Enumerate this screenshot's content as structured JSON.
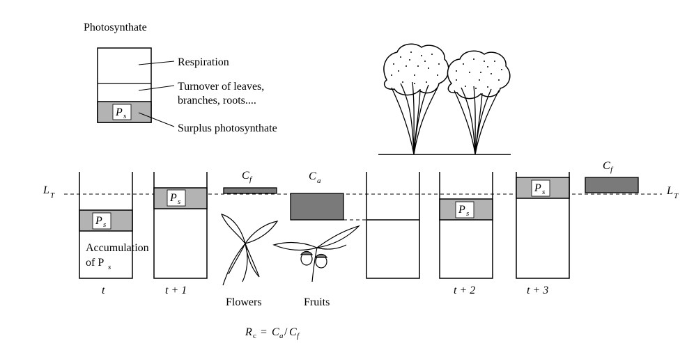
{
  "legend": {
    "title": "Photosynthate",
    "respiration": "Respiration",
    "turnover_line1": "Turnover of leaves,",
    "turnover_line2": "branches, roots....",
    "surplus": "Surplus photosynthate",
    "ps_main": "P",
    "ps_sub": "s"
  },
  "threshold": {
    "main": "L",
    "sub": "T"
  },
  "bins": {
    "t": {
      "ps_main": "P",
      "ps_sub": "s",
      "accum_line1": "Accumulation",
      "accum_line2_main": "of P",
      "accum_line2_sub": "s",
      "time": "t"
    },
    "t1": {
      "ps_main": "P",
      "ps_sub": "s",
      "time": "t + 1"
    },
    "t2": {
      "ps_main": "P",
      "ps_sub": "s",
      "time": "t + 2"
    },
    "t3": {
      "ps_main": "P",
      "ps_sub": "s",
      "time": "t + 3"
    }
  },
  "costs": {
    "cf_main": "C",
    "cf_sub": "f",
    "ca_main": "C",
    "ca_sub": "a",
    "cf2_main": "C",
    "cf2_sub": "f"
  },
  "labels": {
    "flowers": "Flowers",
    "fruits": "Fruits"
  },
  "formula": {
    "r": "R",
    "r_sub": "c",
    "eq": " = ",
    "ca": "C",
    "ca_sub": "a",
    "slash": "/",
    "cf": "C",
    "cf_sub": "f"
  },
  "colors": {
    "surplus": "#b3b3b3",
    "cost": "#7a7a7a",
    "line": "#000000"
  },
  "icons": [
    "tree-icon",
    "tree-icon",
    "flower-branch-icon",
    "fruit-branch-icon"
  ]
}
